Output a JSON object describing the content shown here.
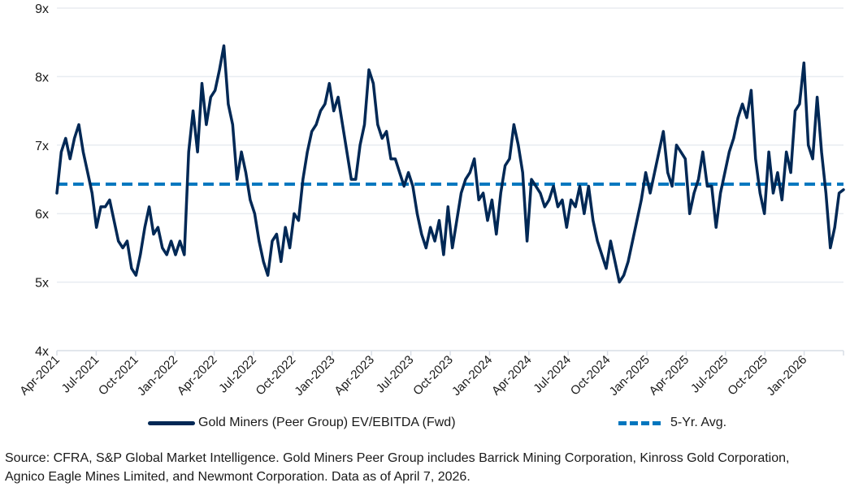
{
  "chart_data": {
    "type": "line",
    "title": "",
    "xlabel": "",
    "ylabel": "",
    "ylim": [
      4,
      9
    ],
    "yticks": [
      "4x",
      "5x",
      "6x",
      "7x",
      "8x",
      "9x"
    ],
    "ytick_values": [
      4,
      5,
      6,
      7,
      8,
      9
    ],
    "x_range": [
      "2021-04-01",
      "2026-04-07"
    ],
    "xticks": [
      "Apr-2021",
      "Jul-2021",
      "Oct-2021",
      "Jan-2022",
      "Apr-2022",
      "Jul-2022",
      "Oct-2022",
      "Jan-2023",
      "Apr-2023",
      "Jul-2023",
      "Oct-2023",
      "Jan-2024",
      "Apr-2024",
      "Jul-2024",
      "Oct-2024",
      "Jan-2025",
      "Apr-2025",
      "Jul-2025",
      "Oct-2025",
      "Jan-2026",
      ""
    ],
    "grid": "horizontal",
    "legend_position": "bottom",
    "series": [
      {
        "name": "Gold Miners (Peer Group) EV/EBITDA (Fwd)",
        "color": "#002855",
        "style": "solid",
        "note": "approximate values sampled evenly from Apr-2021 to Apr-2026",
        "values": [
          6.3,
          6.9,
          7.1,
          6.8,
          7.1,
          7.3,
          6.9,
          6.6,
          6.3,
          5.8,
          6.1,
          6.1,
          6.2,
          5.9,
          5.6,
          5.5,
          5.6,
          5.2,
          5.1,
          5.4,
          5.8,
          6.1,
          5.7,
          5.8,
          5.5,
          5.4,
          5.6,
          5.4,
          5.6,
          5.4,
          6.9,
          7.5,
          6.9,
          7.9,
          7.3,
          7.7,
          7.8,
          8.1,
          8.45,
          7.6,
          7.3,
          6.5,
          6.9,
          6.6,
          6.2,
          6.0,
          5.6,
          5.3,
          5.1,
          5.6,
          5.7,
          5.3,
          5.8,
          5.5,
          6.0,
          5.9,
          6.5,
          6.9,
          7.2,
          7.3,
          7.5,
          7.6,
          7.9,
          7.5,
          7.7,
          7.3,
          6.9,
          6.5,
          6.5,
          7.0,
          7.3,
          8.1,
          7.9,
          7.3,
          7.1,
          7.2,
          6.8,
          6.8,
          6.6,
          6.4,
          6.6,
          6.4,
          6.0,
          5.7,
          5.5,
          5.8,
          5.6,
          5.9,
          5.4,
          6.1,
          5.5,
          5.9,
          6.3,
          6.5,
          6.6,
          6.8,
          6.2,
          6.3,
          5.9,
          6.2,
          5.7,
          6.3,
          6.7,
          6.8,
          7.3,
          7.0,
          6.6,
          5.6,
          6.5,
          6.4,
          6.3,
          6.1,
          6.2,
          6.4,
          6.1,
          6.2,
          5.8,
          6.2,
          6.1,
          6.4,
          6.0,
          6.4,
          5.9,
          5.6,
          5.4,
          5.2,
          5.6,
          5.3,
          5.0,
          5.1,
          5.3,
          5.6,
          5.9,
          6.2,
          6.6,
          6.3,
          6.6,
          6.9,
          7.2,
          6.6,
          6.4,
          7.0,
          6.9,
          6.8,
          6.0,
          6.3,
          6.5,
          6.9,
          6.4,
          6.4,
          5.8,
          6.3,
          6.6,
          6.9,
          7.1,
          7.4,
          7.6,
          7.4,
          7.8,
          6.8,
          6.3,
          6.0,
          6.9,
          6.3,
          6.6,
          6.2,
          6.9,
          6.6,
          7.5,
          7.6,
          8.2,
          7.0,
          6.8,
          7.7,
          6.9,
          6.3,
          5.5,
          5.8,
          6.3,
          6.35
        ]
      },
      {
        "name": "5-Yr. Avg.",
        "color": "#0076BE",
        "style": "dashed",
        "value": 6.43
      }
    ]
  },
  "footnote": {
    "line1": "Source: CFRA, S&P Global Market Intelligence. Gold Miners Peer Group includes Barrick Mining Corporation, Kinross Gold Corporation,",
    "line2": "Agnico Eagle Mines Limited, and Newmont Corporation. Data as of April 7, 2026."
  }
}
